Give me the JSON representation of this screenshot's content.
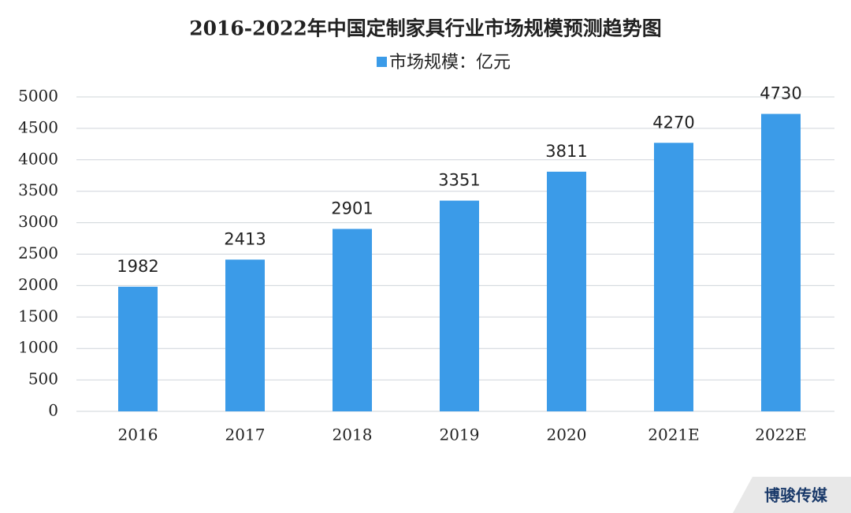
{
  "chart_data": {
    "type": "bar",
    "title": "2016-2022年中国定制家具行业市场规模预测趋势图",
    "categories": [
      "2016",
      "2017",
      "2018",
      "2019",
      "2020",
      "2021E",
      "2022E"
    ],
    "series": [
      {
        "name": "市场规模：亿元",
        "color": "#3b9be8",
        "values": [
          1982,
          2413,
          2901,
          3351,
          3811,
          4270,
          4730
        ]
      }
    ],
    "ylim": [
      0,
      5000
    ],
    "yticks": [
      0,
      500,
      1000,
      1500,
      2000,
      2500,
      3000,
      3500,
      4000,
      4500,
      5000
    ],
    "grid": true
  },
  "watermark": "博骏传媒"
}
